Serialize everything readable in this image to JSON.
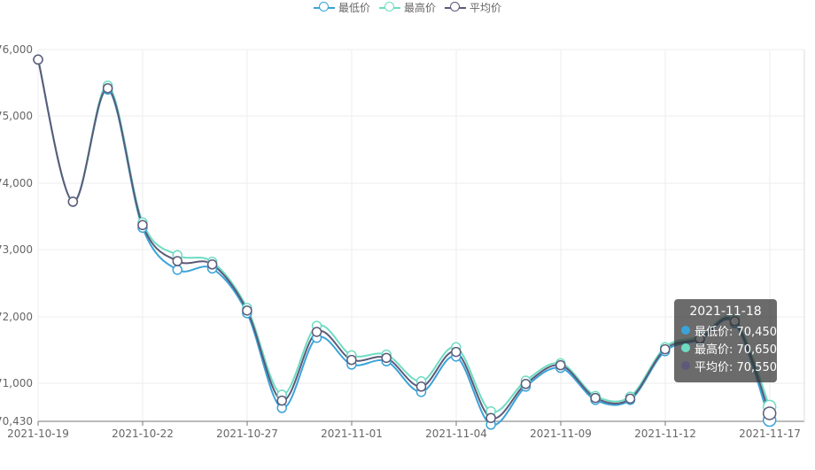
{
  "chart_data": {
    "type": "line",
    "smooth": true,
    "title": "",
    "xlabel": "",
    "ylabel": "",
    "x_ticks": [
      "2021-10-19",
      "2021-10-22",
      "2021-10-27",
      "2021-11-01",
      "2021-11-04",
      "2021-11-09",
      "2021-11-12",
      "2021-11-17"
    ],
    "y_ticks": [
      "76,000",
      "75,000",
      "74,000",
      "73,000",
      "72,000",
      "71,000",
      "70,430"
    ],
    "ylim": [
      70430,
      76000
    ],
    "grid": true,
    "legend_position": "top-center",
    "series": [
      {
        "name": "最低价",
        "color": "#3ba3d8",
        "values": [
          75850,
          73720,
          75400,
          73330,
          72700,
          72720,
          72050,
          70630,
          71680,
          71280,
          71330,
          70870,
          71400,
          70380,
          70950,
          71230,
          70750,
          70750,
          71480,
          71650,
          71900,
          70450
        ]
      },
      {
        "name": "最高价",
        "color": "#6edcc2",
        "values": [
          75850,
          73720,
          75460,
          73410,
          72920,
          72820,
          72130,
          70830,
          71860,
          71420,
          71430,
          71030,
          71540,
          70580,
          71040,
          71300,
          70810,
          70800,
          71540,
          71700,
          71960,
          70650
        ]
      },
      {
        "name": "平均价",
        "color": "#5c5a78",
        "values": [
          75850,
          73720,
          75420,
          73370,
          72830,
          72780,
          72090,
          70740,
          71770,
          71350,
          71380,
          70950,
          71470,
          70480,
          70990,
          71270,
          70780,
          70770,
          71510,
          71670,
          71930,
          70550
        ]
      }
    ],
    "tooltip": {
      "title": "2021-11-18",
      "rows": [
        {
          "label": "最低价: 70,450",
          "color": "#3ba3d8"
        },
        {
          "label": "最高价: 70,650",
          "color": "#6edcc2"
        },
        {
          "label": "平均价: 70,550",
          "color": "#5c5a78"
        }
      ]
    }
  }
}
